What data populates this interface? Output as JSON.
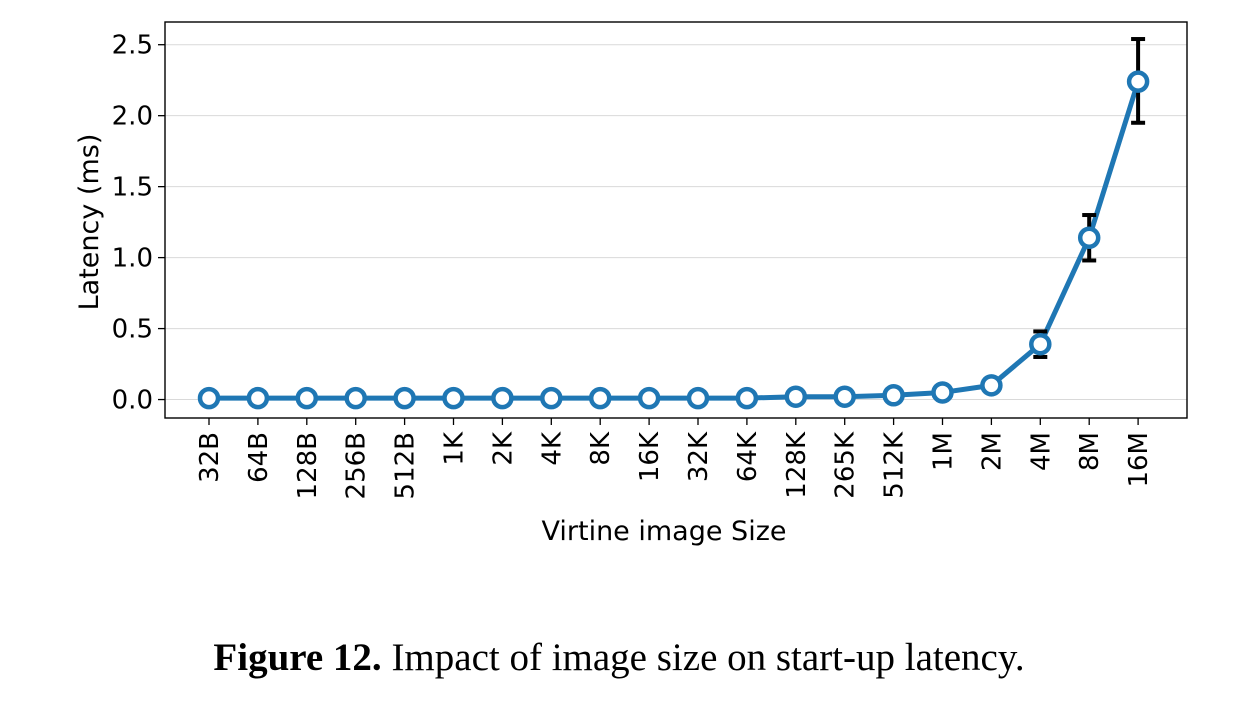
{
  "chart_data": {
    "type": "line",
    "xlabel": "Virtine image Size",
    "ylabel": "Latency (ms)",
    "ylim": [
      -0.13,
      2.66
    ],
    "yticks": [
      0.0,
      0.5,
      1.0,
      1.5,
      2.0,
      2.5
    ],
    "ytick_labels": [
      "0.0",
      "0.5",
      "1.0",
      "1.5",
      "2.0",
      "2.5"
    ],
    "grid": "horizontal",
    "categories": [
      "32B",
      "64B",
      "128B",
      "256B",
      "512B",
      "1K",
      "2K",
      "4K",
      "8K",
      "16K",
      "32K",
      "64K",
      "128K",
      "265K",
      "512K",
      "1M",
      "2M",
      "4M",
      "8M",
      "16M"
    ],
    "series": [
      {
        "values": [
          0.01,
          0.01,
          0.01,
          0.01,
          0.01,
          0.01,
          0.01,
          0.01,
          0.01,
          0.01,
          0.01,
          0.01,
          0.02,
          0.02,
          0.03,
          0.05,
          0.1,
          0.39,
          1.14,
          2.24
        ],
        "error_low": [
          0.01,
          0.01,
          0.01,
          0.01,
          0.01,
          0.01,
          0.01,
          0.01,
          0.01,
          0.01,
          0.01,
          0.01,
          0.02,
          0.02,
          0.03,
          0.05,
          0.09,
          0.3,
          0.98,
          1.95
        ],
        "error_high": [
          0.01,
          0.01,
          0.01,
          0.01,
          0.01,
          0.01,
          0.01,
          0.01,
          0.01,
          0.01,
          0.01,
          0.01,
          0.02,
          0.02,
          0.03,
          0.05,
          0.11,
          0.48,
          1.3,
          2.54
        ],
        "color": "#1f77b4"
      }
    ]
  },
  "caption": {
    "label": "Figure 12.",
    "text": " Impact of image size on start-up latency."
  }
}
